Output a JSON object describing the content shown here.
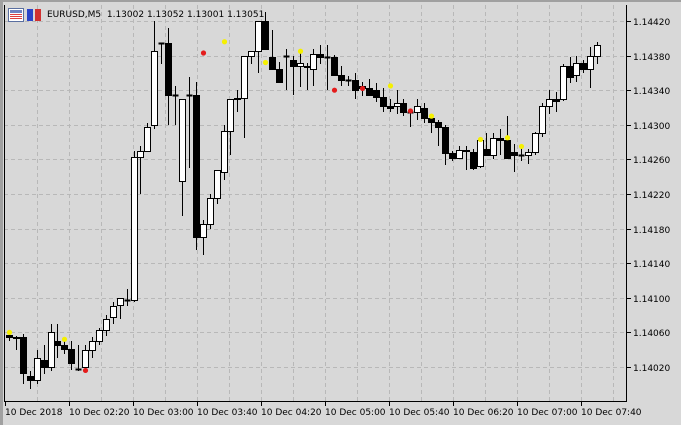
{
  "header": {
    "symbol": "EURUSD,M5",
    "ohlc": "1.13002 1.13052 1.13001 1.13051",
    "icons": [
      "chart-window-icon",
      "properties-icon"
    ]
  },
  "colors": {
    "background": "#d8d8d8",
    "grid": "#b8b8b8",
    "axis": "#000000",
    "bull_fill": "#ffffff",
    "bear_fill": "#000000",
    "marker_yellow": "#f5f000",
    "marker_red": "#e41c1c"
  },
  "chart_data": {
    "type": "candlestick",
    "title": "EURUSD,M5",
    "xlabel": "",
    "ylabel": "",
    "ylim": [
      1.1399,
      1.1444
    ],
    "y_ticks": [
      "1.14420",
      "1.14380",
      "1.14340",
      "1.14300",
      "1.14260",
      "1.14220",
      "1.14180",
      "1.14140",
      "1.14100",
      "1.14060",
      "1.14020"
    ],
    "x_ticks": [
      "10 Dec 2018",
      "10 Dec 02:20",
      "10 Dec 03:00",
      "10 Dec 03:40",
      "10 Dec 04:20",
      "10 Dec 05:00",
      "10 Dec 05:40",
      "10 Dec 06:20",
      "10 Dec 07:00",
      "10 Dec 07:40"
    ],
    "grid": true,
    "candle_spacing_px": 6.92,
    "candles": [
      [
        1.14057,
        1.1406,
        1.1405,
        1.14055
      ],
      [
        1.14055,
        1.14056,
        1.1404,
        1.14054
      ],
      [
        1.14055,
        1.14058,
        1.14,
        1.14013
      ],
      [
        1.1401,
        1.14015,
        1.13995,
        1.14005
      ],
      [
        1.14005,
        1.1404,
        1.14,
        1.1403
      ],
      [
        1.14028,
        1.14045,
        1.14012,
        1.1402
      ],
      [
        1.1402,
        1.1407,
        1.14015,
        1.1406
      ],
      [
        1.1405,
        1.1407,
        1.1403,
        1.14045
      ],
      [
        1.14045,
        1.1405,
        1.14035,
        1.14041
      ],
      [
        1.14041,
        1.1405,
        1.14017,
        1.14025
      ],
      [
        1.14018,
        1.14045,
        1.14015,
        1.14018
      ],
      [
        1.1402,
        1.14045,
        1.14018,
        1.1404
      ],
      [
        1.1404,
        1.14055,
        1.1403,
        1.1405
      ],
      [
        1.1405,
        1.14065,
        1.14045,
        1.14063
      ],
      [
        1.14063,
        1.1408,
        1.14056,
        1.14075
      ],
      [
        1.14078,
        1.14095,
        1.1407,
        1.14091
      ],
      [
        1.14092,
        1.141,
        1.14075,
        1.141
      ],
      [
        1.14098,
        1.1411,
        1.1409,
        1.14098
      ],
      [
        1.14097,
        1.1427,
        1.14095,
        1.14263
      ],
      [
        1.14263,
        1.14275,
        1.1422,
        1.1427
      ],
      [
        1.1427,
        1.14302,
        1.14268,
        1.14298
      ],
      [
        1.143,
        1.1442,
        1.14295,
        1.14385
      ],
      [
        1.14395,
        1.14393,
        1.1437,
        1.14395
      ],
      [
        1.14395,
        1.14412,
        1.143,
        1.14335
      ],
      [
        1.14335,
        1.14345,
        1.143,
        1.14335
      ],
      [
        1.14235,
        1.1433,
        1.14195,
        1.1433
      ],
      [
        1.14335,
        1.14355,
        1.1425,
        1.14335
      ],
      [
        1.14335,
        1.1435,
        1.14155,
        1.1417
      ],
      [
        1.1417,
        1.1419,
        1.1415,
        1.14185
      ],
      [
        1.14185,
        1.1422,
        1.1418,
        1.14215
      ],
      [
        1.14215,
        1.14245,
        1.14208,
        1.14248
      ],
      [
        1.14245,
        1.143,
        1.14236,
        1.14293
      ],
      [
        1.14293,
        1.1432,
        1.14265,
        1.1433
      ],
      [
        1.1433,
        1.1434,
        1.14315,
        1.14331
      ],
      [
        1.14331,
        1.1434,
        1.14285,
        1.1438
      ],
      [
        1.1438,
        1.14385,
        1.1437,
        1.14385
      ],
      [
        1.14385,
        1.1442,
        1.1436,
        1.1442
      ],
      [
        1.1442,
        1.1443,
        1.14398,
        1.14388
      ],
      [
        1.14378,
        1.1441,
        1.1437,
        1.14365
      ],
      [
        1.14365,
        1.14373,
        1.14352,
        1.1435
      ],
      [
        1.1438,
        1.14388,
        1.1434,
        1.1438
      ],
      [
        1.14375,
        1.1438,
        1.14335,
        1.14368
      ],
      [
        1.14368,
        1.14385,
        1.14344,
        1.14372
      ],
      [
        1.14368,
        1.14372,
        1.1434,
        1.14367
      ],
      [
        1.14365,
        1.14388,
        1.14345,
        1.14382
      ],
      [
        1.14382,
        1.14392,
        1.1437,
        1.14378
      ],
      [
        1.14378,
        1.14392,
        1.1434,
        1.14378
      ],
      [
        1.14378,
        1.14381,
        1.14356,
        1.14358
      ],
      [
        1.14358,
        1.14368,
        1.14345,
        1.14352
      ],
      [
        1.14352,
        1.14356,
        1.14345,
        1.14352
      ],
      [
        1.14352,
        1.1436,
        1.1433,
        1.1434
      ],
      [
        1.14345,
        1.1435,
        1.14333,
        1.14342
      ],
      [
        1.14342,
        1.14353,
        1.1434,
        1.14335
      ],
      [
        1.1434,
        1.14348,
        1.14326,
        1.14332
      ],
      [
        1.14332,
        1.14342,
        1.14315,
        1.14322
      ],
      [
        1.14322,
        1.1433,
        1.14315,
        1.1432
      ],
      [
        1.14322,
        1.1434,
        1.14312,
        1.14325
      ],
      [
        1.14325,
        1.1433,
        1.1431,
        1.14315
      ],
      [
        1.14315,
        1.14318,
        1.14298,
        1.14315
      ],
      [
        1.14315,
        1.1433,
        1.14305,
        1.14322
      ],
      [
        1.1432,
        1.14325,
        1.14302,
        1.14308
      ],
      [
        1.14308,
        1.14312,
        1.1429,
        1.14303
      ],
      [
        1.14303,
        1.14305,
        1.14276,
        1.14297
      ],
      [
        1.14297,
        1.143,
        1.14253,
        1.14267
      ],
      [
        1.14267,
        1.1427,
        1.14258,
        1.14262
      ],
      [
        1.14262,
        1.14275,
        1.1426,
        1.14271
      ],
      [
        1.14271,
        1.14275,
        1.14248,
        1.1427
      ],
      [
        1.14268,
        1.14272,
        1.14248,
        1.1425
      ],
      [
        1.14252,
        1.14285,
        1.1425,
        1.14282
      ],
      [
        1.14272,
        1.1429,
        1.14268,
        1.14265
      ],
      [
        1.14265,
        1.1429,
        1.1426,
        1.14285
      ],
      [
        1.14285,
        1.14295,
        1.14265,
        1.14283
      ],
      [
        1.14283,
        1.1431,
        1.14262,
        1.14262
      ],
      [
        1.14268,
        1.14278,
        1.14245,
        1.14265
      ],
      [
        1.14265,
        1.14275,
        1.14258,
        1.14265
      ],
      [
        1.14265,
        1.14272,
        1.14255,
        1.14268
      ],
      [
        1.14268,
        1.14292,
        1.14265,
        1.1429
      ],
      [
        1.1429,
        1.14325,
        1.14286,
        1.14322
      ],
      [
        1.14322,
        1.1434,
        1.14312,
        1.1433
      ],
      [
        1.1433,
        1.14338,
        1.14315,
        1.14328
      ],
      [
        1.1433,
        1.1437,
        1.14328,
        1.14368
      ],
      [
        1.14368,
        1.14378,
        1.14348,
        1.14355
      ],
      [
        1.14358,
        1.1438,
        1.1435,
        1.14372
      ],
      [
        1.14372,
        1.14375,
        1.1436,
        1.14365
      ],
      [
        1.14365,
        1.1439,
        1.14342,
        1.1438
      ],
      [
        1.1438,
        1.14396,
        1.1437,
        1.14392
      ]
    ],
    "markers": [
      {
        "i": 0,
        "color": "yellow",
        "price": 1.1406
      },
      {
        "i": 8,
        "color": "yellow",
        "price": 1.14052
      },
      {
        "i": 11,
        "color": "red",
        "price": 1.14016
      },
      {
        "i": 28,
        "color": "red",
        "price": 1.14383
      },
      {
        "i": 31,
        "color": "yellow",
        "price": 1.14396
      },
      {
        "i": 37,
        "color": "yellow",
        "price": 1.14372
      },
      {
        "i": 42,
        "color": "yellow",
        "price": 1.14385
      },
      {
        "i": 47,
        "color": "red",
        "price": 1.1434
      },
      {
        "i": 51,
        "color": "red",
        "price": 1.14342
      },
      {
        "i": 55,
        "color": "yellow",
        "price": 1.14345
      },
      {
        "i": 58,
        "color": "red",
        "price": 1.14316
      },
      {
        "i": 61,
        "color": "yellow",
        "price": 1.1431
      },
      {
        "i": 68,
        "color": "yellow",
        "price": 1.14283
      },
      {
        "i": 72,
        "color": "yellow",
        "price": 1.14285
      },
      {
        "i": 74,
        "color": "yellow",
        "price": 1.14275
      }
    ]
  }
}
